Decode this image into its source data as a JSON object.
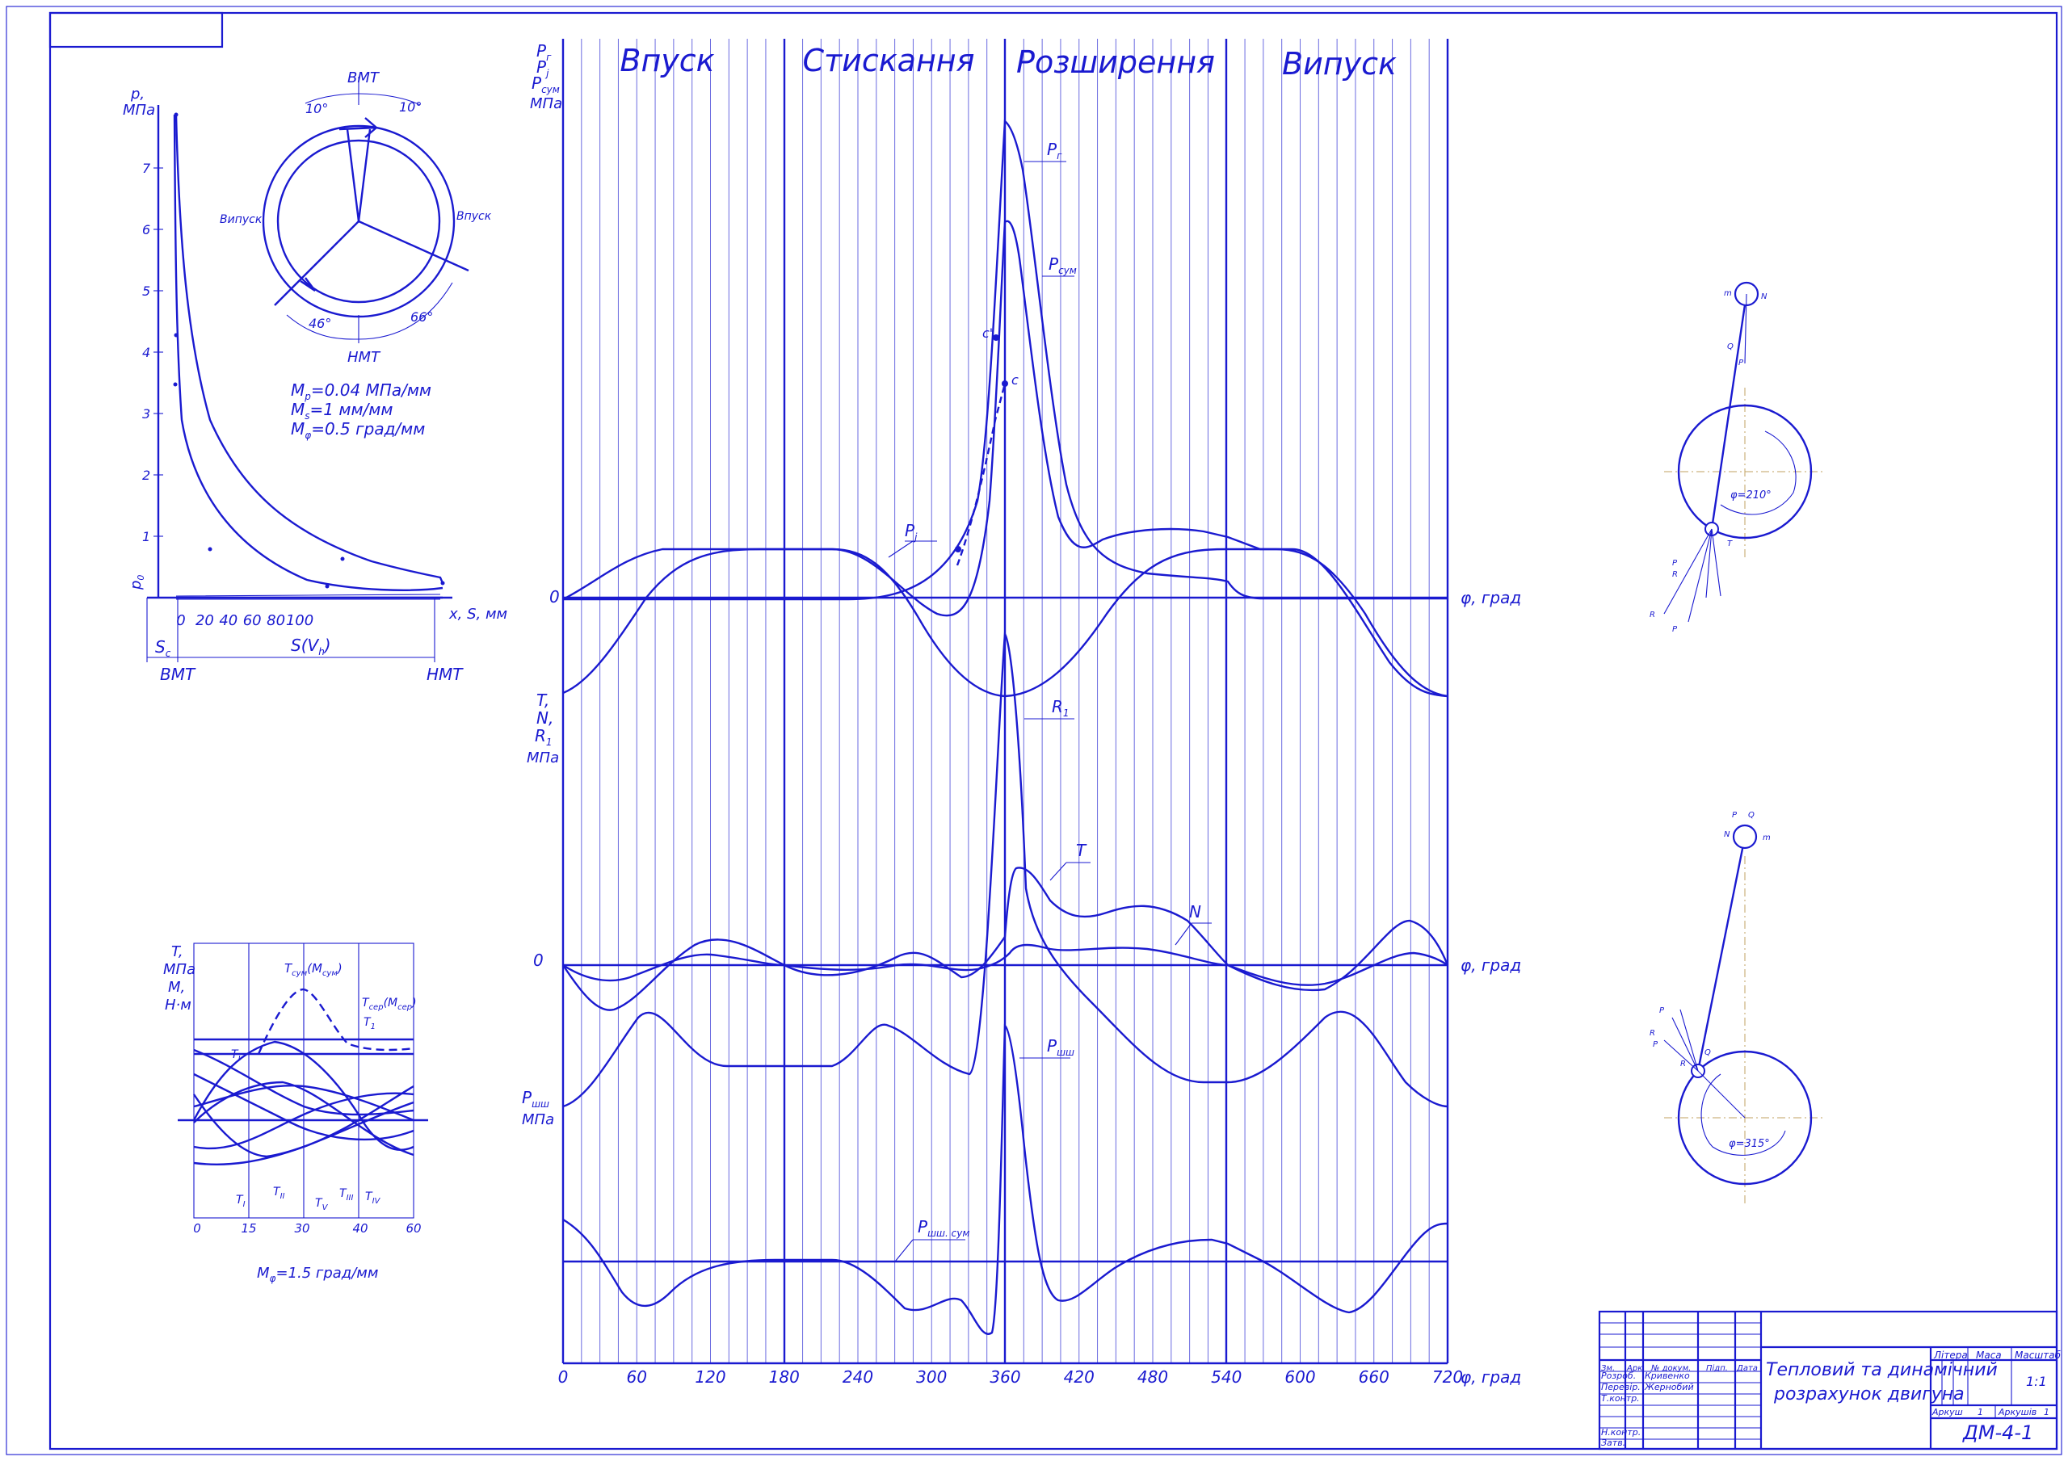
{
  "phases": [
    "Впуск",
    "Стискання",
    "Розширення",
    "Випуск"
  ],
  "main_chart": {
    "x_ticks": [
      "0",
      "60",
      "120",
      "180",
      "240",
      "300",
      "360",
      "420",
      "480",
      "540",
      "600",
      "660",
      "720"
    ],
    "x_label": "φ, град",
    "zero": "0",
    "y_label_top": [
      "P",
      "P",
      "P",
      "МПа"
    ],
    "y_label_top_sub": [
      "г",
      "j",
      "сум",
      ""
    ],
    "y_label_mid": [
      "T,",
      "N,",
      "R",
      "МПа"
    ],
    "y_label_mid_sub": [
      "",
      "",
      "1",
      ""
    ],
    "y_label_low": [
      "P",
      "МПа"
    ],
    "y_label_low_sub": [
      "шш",
      ""
    ],
    "curve_labels": {
      "Pg": "P",
      "Pg_sub": "г",
      "Psum": "P",
      "Psum_sub": "сум",
      "Pj": "P",
      "Pj_sub": "j",
      "R1": "R",
      "R1_sub": "1",
      "T": "T",
      "N": "N",
      "Psh": "P",
      "Psh_sub": "шш",
      "Pshsum": "P",
      "Pshsum_sub": "шш. сум",
      "c1": "c'",
      "c": "c"
    }
  },
  "indicator": {
    "y_label": [
      "p,",
      "МПа"
    ],
    "y_ticks": [
      "1",
      "2",
      "3",
      "4",
      "5",
      "6",
      "7"
    ],
    "x_ticks": [
      "0",
      "20",
      "40",
      "60",
      "80",
      "100"
    ],
    "x_label": "x, S, мм",
    "sv_label": "S(V",
    "sv_sub": "h",
    "sc_label": "S",
    "sc_sub": "c",
    "p0_label": "p",
    "p0_sub": "0",
    "vmt": "ВМТ",
    "nmt": "НМТ",
    "scales": [
      "M",
      "M",
      "M"
    ],
    "scales_sub": [
      "p",
      "s",
      "φ"
    ],
    "scales_val": [
      "=0.04 МПа/мм",
      "=1 мм/мм",
      "=0.5 град/мм"
    ]
  },
  "valve_diagram": {
    "vmt": "ВМТ",
    "nmt": "НМТ",
    "intake": "Впуск",
    "exhaust": "Випуск",
    "angles": [
      "10°",
      "10°",
      "46°",
      "66°"
    ]
  },
  "torque_chart": {
    "y_label": [
      "T,",
      "МПа",
      "M,",
      "Н·м"
    ],
    "x_ticks": [
      "0",
      "15",
      "30",
      "40",
      "60"
    ],
    "scale": "M",
    "scale_sub": "φ",
    "scale_val": "=1.5 град/мм",
    "labels": {
      "tsum": "T",
      "tsum_sub": "сум",
      "tsum_paren": "(M",
      "tsum_paren_sub": "сум",
      "close": ")",
      "tser": "T",
      "tser_sub": "сер",
      "tser_paren": "(M",
      "tser_paren_sub": "сер",
      "t1": "T",
      "t1_sub": "1",
      "t_i": "T",
      "t_i_sub": "I",
      "t_ii": "T",
      "t_ii_sub": "II",
      "t_iii": "T",
      "t_iii_sub": "III",
      "t_iv": "T",
      "t_iv_sub": "IV",
      "t_v": "T",
      "t_v_sub": "V"
    }
  },
  "crank_views": [
    {
      "angle": "φ=210°",
      "labels": [
        "m",
        "N",
        "Q",
        "P",
        "P",
        "R",
        "T",
        "R",
        "P"
      ]
    },
    {
      "angle": "φ=315°",
      "labels": [
        "P",
        "Q",
        "N",
        "m",
        "P",
        "R",
        "P",
        "Q",
        "R"
      ]
    }
  ],
  "title_block": {
    "title_line1": "Тепловий та динамічний",
    "title_line2": "розрахунок двигуна",
    "code": "ДМ-4-1",
    "header_cols": [
      "Зм.",
      "Арк.",
      "№ докум.",
      "Підп.",
      "Дата"
    ],
    "rows": [
      {
        "role": "Розроб.",
        "name": "Кривенко"
      },
      {
        "role": "Перевір.",
        "name": "Жернобий"
      },
      {
        "role": "Т.контр.",
        "name": ""
      },
      {
        "role": "",
        "name": ""
      },
      {
        "role": "Н.контр.",
        "name": ""
      },
      {
        "role": "Затв.",
        "name": ""
      }
    ],
    "litera": "Літера",
    "masa": "Маса",
    "masshtab": "Масштаб",
    "scale_value": "1:1",
    "sheet_label": "Аркуш",
    "sheet_value": "1",
    "sheets_label": "Аркушів",
    "sheets_value": "1"
  },
  "colors": {
    "ink": "#1a1ad0",
    "paper": "#ffffff"
  }
}
